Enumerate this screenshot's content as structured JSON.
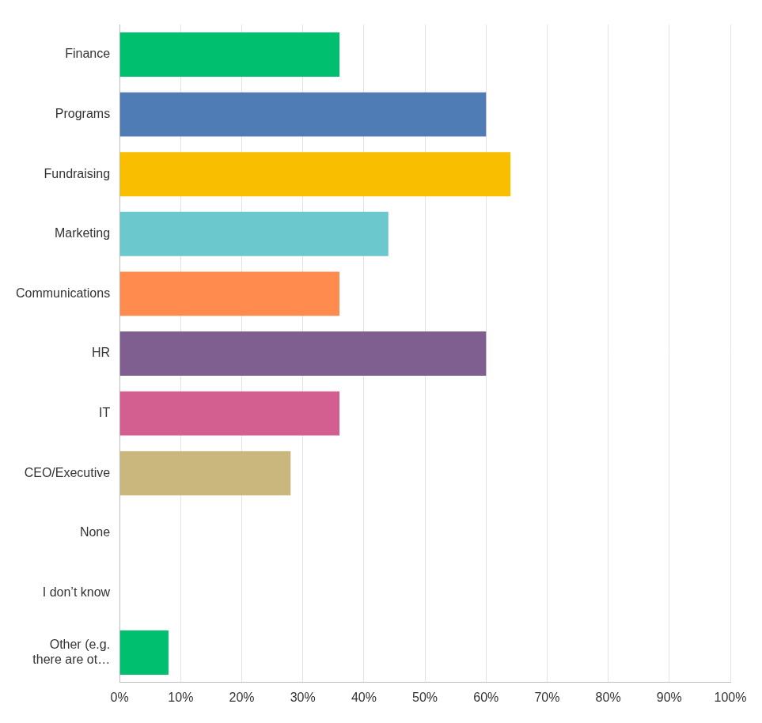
{
  "chart_data": {
    "type": "bar",
    "orientation": "horizontal",
    "categories": [
      "Finance",
      "Programs",
      "Fundraising",
      "Marketing",
      "Communications",
      "HR",
      "IT",
      "CEO/Executive",
      "None",
      "I don’t know",
      "Other (e.g. there are ot…"
    ],
    "values": [
      36,
      60,
      64,
      44,
      36,
      60,
      36,
      28,
      0,
      0,
      8
    ],
    "colors": [
      "#00bf6f",
      "#507cb6",
      "#f9be00",
      "#6bc8cd",
      "#ff8b4f",
      "#7f5f90",
      "#d25f90",
      "#c9b77d",
      "#cccccc",
      "#cccccc",
      "#00bf6f"
    ],
    "xlim": [
      0,
      100
    ],
    "xticks": [
      {
        "value": 0,
        "label": "0%"
      },
      {
        "value": 10,
        "label": "10%"
      },
      {
        "value": 20,
        "label": "20%"
      },
      {
        "value": 30,
        "label": "30%"
      },
      {
        "value": 40,
        "label": "40%"
      },
      {
        "value": 50,
        "label": "50%"
      },
      {
        "value": 60,
        "label": "60%"
      },
      {
        "value": 70,
        "label": "70%"
      },
      {
        "value": 80,
        "label": "80%"
      },
      {
        "value": 90,
        "label": "90%"
      },
      {
        "value": 100,
        "label": "100%"
      }
    ],
    "grid": true
  }
}
